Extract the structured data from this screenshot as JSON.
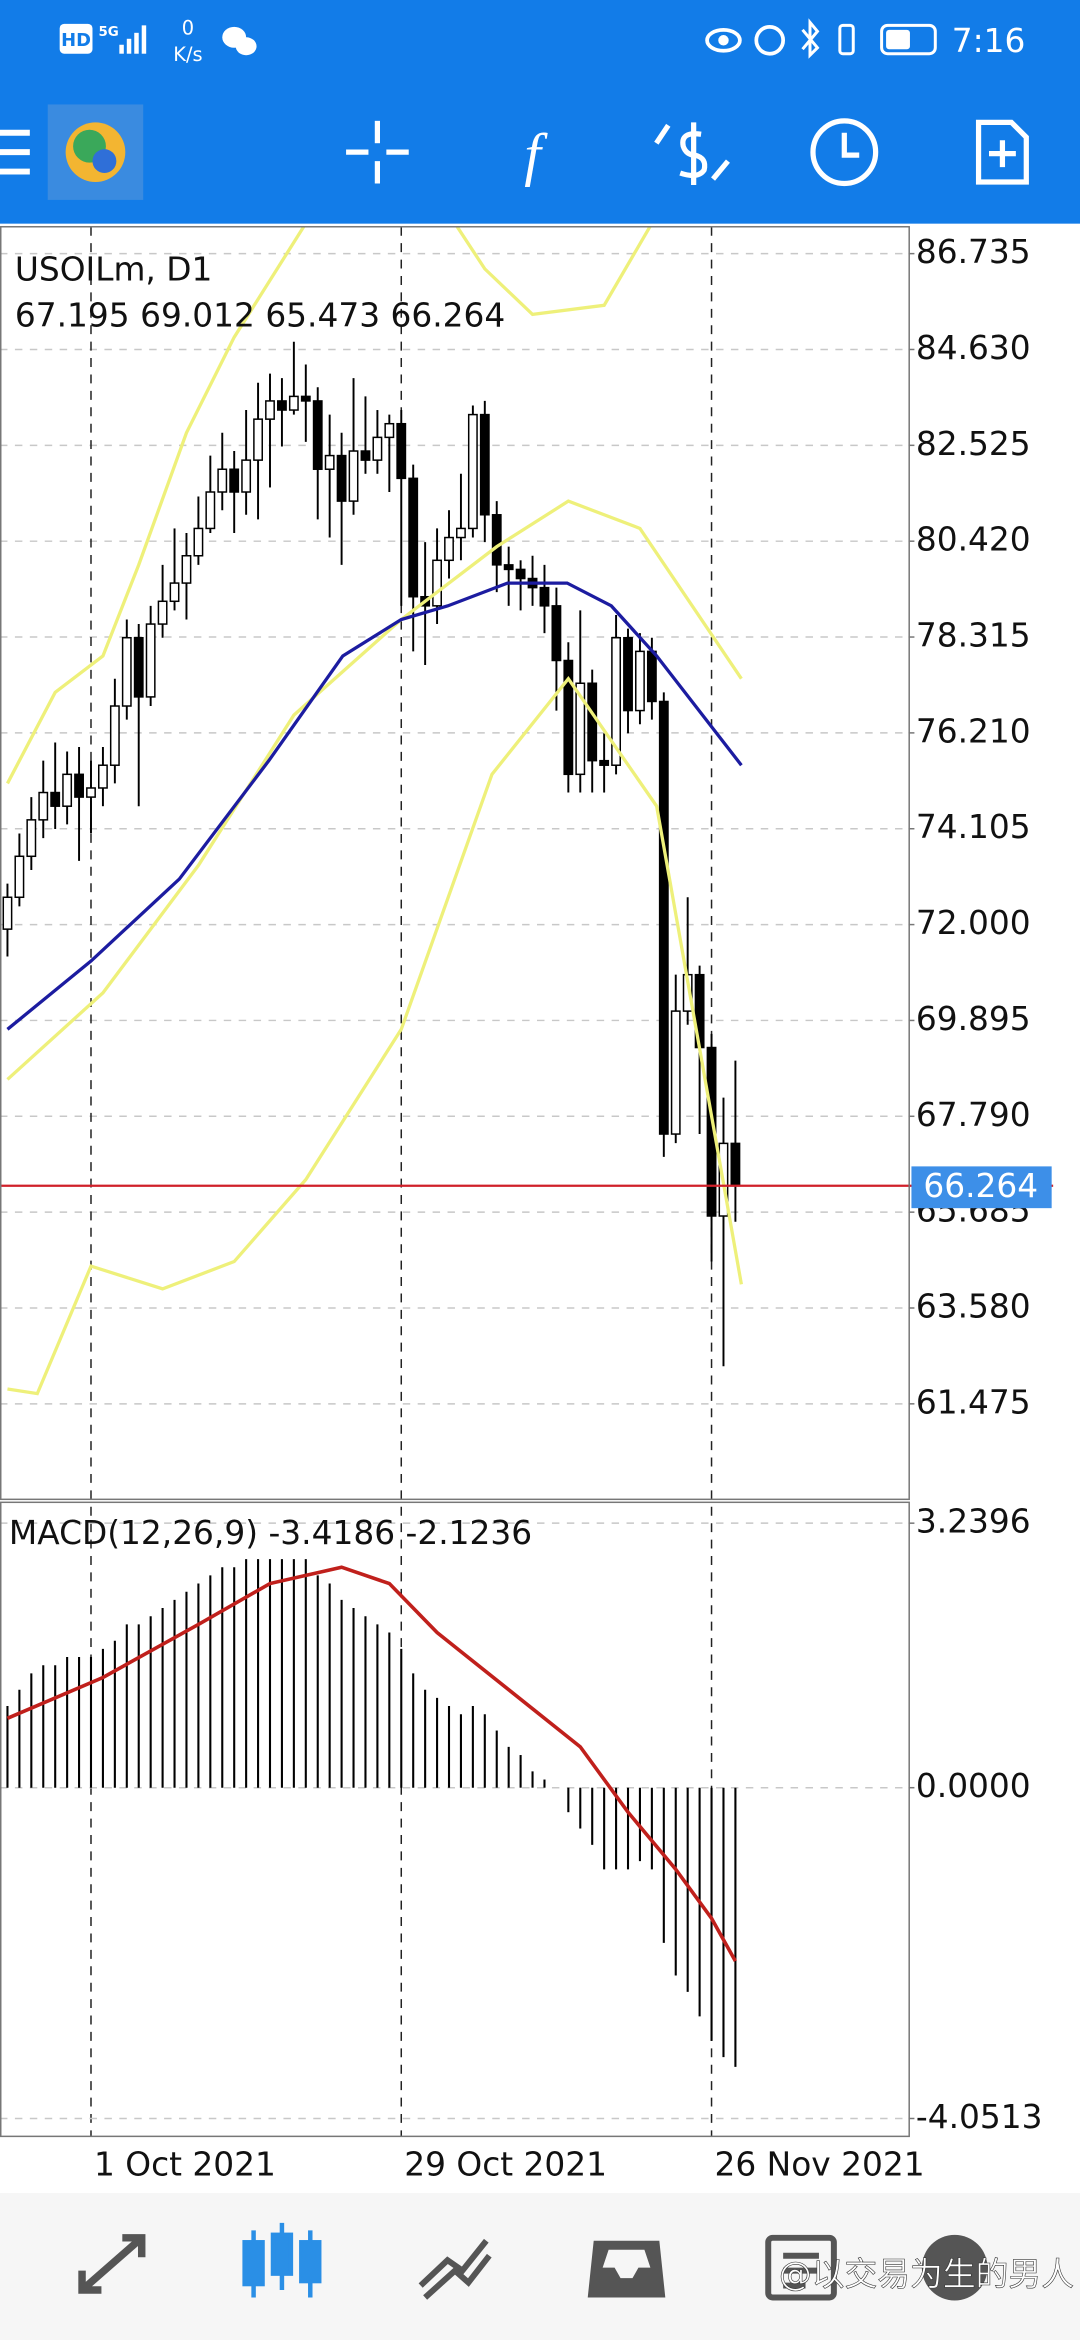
{
  "status_bar": {
    "badge": "HD",
    "network": "5G",
    "speed": "0",
    "speed_unit": "K/s",
    "time": "7:16"
  },
  "toolbar": {
    "indicators": "f"
  },
  "chart_data": [
    {
      "type": "candlestick",
      "title": "USOILm, D1",
      "open": [
        71.9,
        72.6,
        73.5,
        74.3,
        74.9,
        74.6,
        75.3,
        74.8,
        75.0,
        75.5,
        76.8,
        78.3,
        77.0,
        78.6,
        79.1,
        79.5,
        80.1,
        80.7,
        81.5,
        82.0,
        81.5,
        82.2,
        83.1,
        83.5,
        83.3,
        83.6,
        83.5,
        82.0,
        82.3,
        81.3,
        82.4,
        82.2,
        82.7,
        83.0,
        81.8,
        79.2,
        79.0,
        80.0,
        80.5,
        80.7,
        83.2,
        81.0,
        79.9,
        79.8,
        79.6,
        79.4,
        79.0,
        77.8,
        75.3,
        77.3,
        75.6,
        75.5,
        78.3,
        76.7,
        78.0,
        76.9,
        67.4,
        70.1,
        70.9,
        69.3,
        65.6,
        67.195
      ],
      "high": [
        72.9,
        74.0,
        74.8,
        75.6,
        76.0,
        75.8,
        75.9,
        75.6,
        75.9,
        77.4,
        78.7,
        78.6,
        79.0,
        79.9,
        80.7,
        80.6,
        81.4,
        82.3,
        82.8,
        82.4,
        83.3,
        83.9,
        84.1,
        84.0,
        84.8,
        84.3,
        83.8,
        83.2,
        82.8,
        84.0,
        83.6,
        83.3,
        83.2,
        83.3,
        82.1,
        80.4,
        80.7,
        81.1,
        81.9,
        83.4,
        83.5,
        81.3,
        80.3,
        80.0,
        80.1,
        79.9,
        79.4,
        78.2,
        78.9,
        77.6,
        76.2,
        78.8,
        78.5,
        78.4,
        78.3,
        77.1,
        70.9,
        72.6,
        71.1,
        69.6,
        68.2,
        69.012
      ],
      "low": [
        71.3,
        72.4,
        73.2,
        73.9,
        74.1,
        74.2,
        73.4,
        74.0,
        74.6,
        75.1,
        76.5,
        74.6,
        76.8,
        78.3,
        78.9,
        78.7,
        79.9,
        80.6,
        81.1,
        80.6,
        81.0,
        80.9,
        81.6,
        82.5,
        83.2,
        82.6,
        80.9,
        80.5,
        79.9,
        81.0,
        81.9,
        81.9,
        81.5,
        79.0,
        78.0,
        77.7,
        78.6,
        79.6,
        80.0,
        80.5,
        80.4,
        79.3,
        79.0,
        78.9,
        79.0,
        78.4,
        76.7,
        74.9,
        74.9,
        74.9,
        74.9,
        75.3,
        76.2,
        76.4,
        76.5,
        66.9,
        67.2,
        69.8,
        67.4,
        64.6,
        62.3,
        65.473
      ],
      "close": [
        72.6,
        73.5,
        74.3,
        74.9,
        74.6,
        75.3,
        74.8,
        75.0,
        75.5,
        76.8,
        78.3,
        77.0,
        78.6,
        79.1,
        79.5,
        80.1,
        80.7,
        81.5,
        82.0,
        81.5,
        82.2,
        83.1,
        83.5,
        83.3,
        83.6,
        83.5,
        82.0,
        82.3,
        81.3,
        82.4,
        82.2,
        82.7,
        83.0,
        81.8,
        79.2,
        79.0,
        80.0,
        80.5,
        80.7,
        83.2,
        81.0,
        79.9,
        79.8,
        79.6,
        79.4,
        79.0,
        77.8,
        75.3,
        77.3,
        75.6,
        75.5,
        78.3,
        76.7,
        78.0,
        76.9,
        67.4,
        70.1,
        70.9,
        69.3,
        65.6,
        67.195,
        66.264
      ],
      "lines": [
        {
          "color": "#eef07a",
          "x": [
            0,
            4,
            8,
            11,
            15,
            19,
            25,
            36,
            40,
            44,
            50,
            54
          ],
          "values": [
            75.1,
            77.1,
            77.9,
            79.9,
            82.8,
            84.9,
            87.4,
            88.0,
            86.4,
            85.4,
            85.6,
            87.4
          ]
        },
        {
          "color": "#eef07a",
          "x": [
            0,
            8,
            16,
            24,
            33,
            41,
            47,
            53,
            61.5
          ],
          "values": [
            68.6,
            70.5,
            73.3,
            76.6,
            78.7,
            80.3,
            81.3,
            80.7,
            77.4
          ]
        },
        {
          "color": "#eef07a",
          "x": [
            0,
            2.5,
            7,
            13,
            19,
            25,
            33,
            40.6,
            47,
            54.4,
            61.5
          ],
          "values": [
            61.8,
            61.7,
            64.5,
            64.0,
            64.6,
            66.4,
            69.7,
            75.3,
            77.4,
            74.6,
            64.1
          ]
        },
        {
          "color": "#1c1ca0",
          "x": [
            0,
            7,
            14.4,
            21.9,
            28.1,
            33,
            36.9,
            41.9,
            46.9,
            50.6,
            54.4,
            61.5
          ],
          "values": [
            69.7,
            71.2,
            73.0,
            75.6,
            77.9,
            78.7,
            79.0,
            79.5,
            79.5,
            79.0,
            77.9,
            75.5
          ]
        }
      ],
      "price_line_color": "#d0202a",
      "xlim": [
        -0.625,
        75.5
      ],
      "xticks": [
        {
          "value": 7,
          "label": "1 Oct 2021"
        },
        {
          "value": 33,
          "label": "29 Oct 2021"
        },
        {
          "value": 59,
          "label": "26 Nov 2021"
        }
      ],
      "ylim": [
        59.378,
        87.325
      ],
      "yticks": [
        86.735,
        {
          "value": 84.63,
          "label": "84.630"
        },
        82.525,
        {
          "value": 80.42,
          "label": "80.420"
        },
        78.315,
        {
          "value": 76.21,
          "label": "76.210"
        },
        74.105,
        {
          "value": 72,
          "label": "72.000"
        },
        69.895,
        {
          "value": 67.79,
          "label": "67.790"
        },
        65.685,
        {
          "value": 63.58,
          "label": "63.580"
        },
        61.475
      ],
      "grid": true
    },
    {
      "type": "macd",
      "title": "MACD(12,26,9)",
      "histogram": {
        "color": "#000000",
        "values": [
          1.0,
          1.2,
          1.4,
          1.5,
          1.5,
          1.6,
          1.6,
          1.6,
          1.7,
          1.8,
          2.0,
          2.0,
          2.1,
          2.2,
          2.3,
          2.4,
          2.5,
          2.6,
          2.7,
          2.7,
          2.8,
          2.8,
          2.8,
          2.8,
          2.8,
          2.8,
          2.6,
          2.5,
          2.3,
          2.2,
          2.1,
          2.0,
          1.9,
          1.7,
          1.4,
          1.2,
          1.1,
          1.0,
          0.9,
          1.0,
          0.9,
          0.7,
          0.5,
          0.4,
          0.2,
          0.1,
          0.0,
          -0.3,
          -0.5,
          -0.7,
          -1.0,
          -1.0,
          -1.0,
          -0.9,
          -1.0,
          -1.9,
          -2.3,
          -2.5,
          -2.8,
          -3.1,
          -3.3,
          -3.4186
        ]
      },
      "signal": {
        "color": "#c0201c",
        "x": [
          0,
          8,
          16,
          22,
          28,
          32,
          36,
          42,
          48,
          52,
          56,
          59,
          61
        ],
        "values": [
          0.85,
          1.35,
          2.0,
          2.5,
          2.7,
          2.5,
          1.9,
          1.2,
          0.5,
          -0.3,
          -1.0,
          -1.6,
          -2.1236
        ]
      },
      "ylim": [
        -4.27,
        3.495
      ],
      "yticks": [
        3.2396,
        {
          "value": 0,
          "label": "0.0000"
        },
        -4.0513
      ],
      "grid": true
    }
  ],
  "watermark": "@以交易为生的男人"
}
